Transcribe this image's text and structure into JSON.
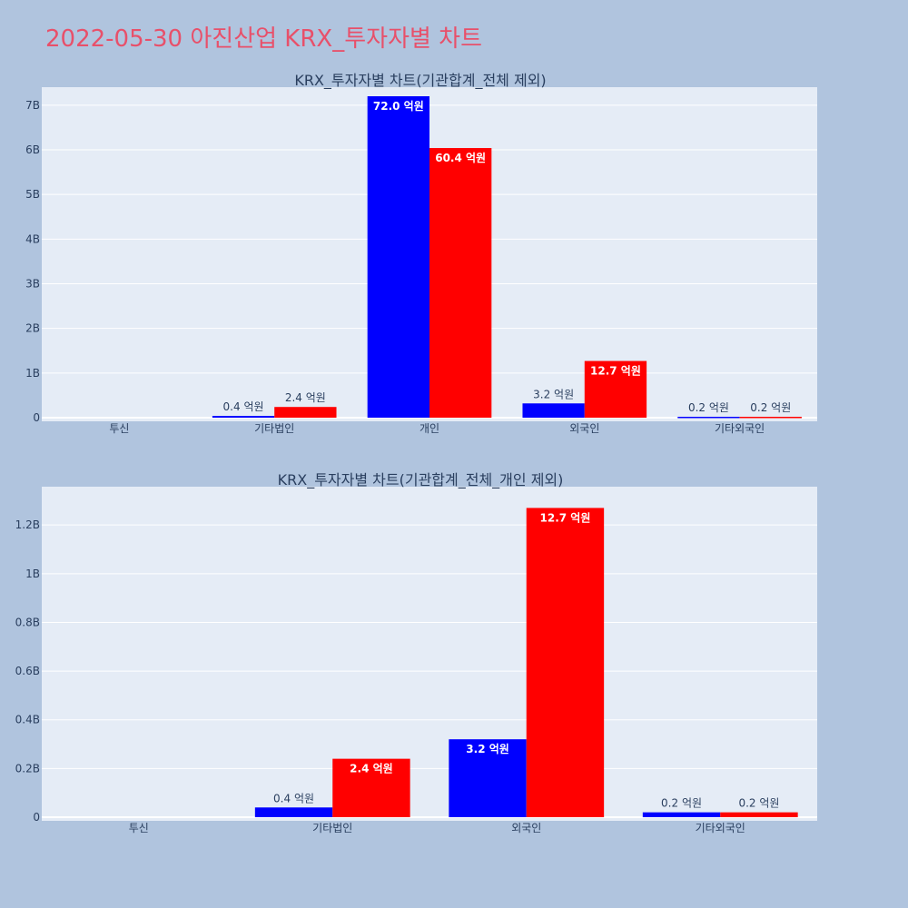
{
  "title": "2022-05-30 아진산업 KRX_투자자별 차트",
  "colors": {
    "buy": "#0000ff",
    "sell": "#ff0000",
    "plot_bg": "#e5ecf6",
    "page_bg": "#b0c4de",
    "grid": "#ffffff"
  },
  "chart_data": [
    {
      "type": "bar",
      "title": "KRX_투자자별 차트(기관합계_전체 제외)",
      "categories": [
        "투신",
        "기타법인",
        "개인",
        "외국인",
        "기타외국인"
      ],
      "ylim": [
        0,
        7200000000.0
      ],
      "yticks": [
        0,
        1000000000.0,
        2000000000.0,
        3000000000.0,
        4000000000.0,
        5000000000.0,
        6000000000.0,
        7000000000.0
      ],
      "ytick_labels": [
        "0",
        "1B",
        "2B",
        "3B",
        "4B",
        "5B",
        "6B",
        "7B"
      ],
      "series": [
        {
          "color": "#0000ff",
          "values": [
            0,
            40000000.0,
            7200000000.0,
            320000000.0,
            20000000.0
          ],
          "labels": [
            "",
            "0.4 억원",
            "72.0 억원",
            "3.2 억원",
            "0.2 억원"
          ]
        },
        {
          "color": "#ff0000",
          "values": [
            0,
            240000000.0,
            6040000000.0,
            1270000000.0,
            20000000.0
          ],
          "labels": [
            "",
            "2.4 억원",
            "60.4 억원",
            "12.7 억원",
            "0.2 억원"
          ]
        }
      ]
    },
    {
      "type": "bar",
      "title": "KRX_투자자별 차트(기관합계_전체_개인 제외)",
      "categories": [
        "투신",
        "기타법인",
        "외국인",
        "기타외국인"
      ],
      "ylim": [
        0,
        1320000000.0
      ],
      "yticks": [
        0,
        200000000.0,
        400000000.0,
        600000000.0,
        800000000.0,
        1000000000.0,
        1200000000.0
      ],
      "ytick_labels": [
        "0",
        "0.2B",
        "0.4B",
        "0.6B",
        "0.8B",
        "1B",
        "1.2B"
      ],
      "series": [
        {
          "color": "#0000ff",
          "values": [
            0,
            40000000.0,
            320000000.0,
            20000000.0
          ],
          "labels": [
            "",
            "0.4 억원",
            "3.2 억원",
            "0.2 억원"
          ]
        },
        {
          "color": "#ff0000",
          "values": [
            0,
            240000000.0,
            1270000000.0,
            20000000.0
          ],
          "labels": [
            "",
            "2.4 억원",
            "12.7 억원",
            "0.2 억원"
          ]
        }
      ]
    }
  ]
}
